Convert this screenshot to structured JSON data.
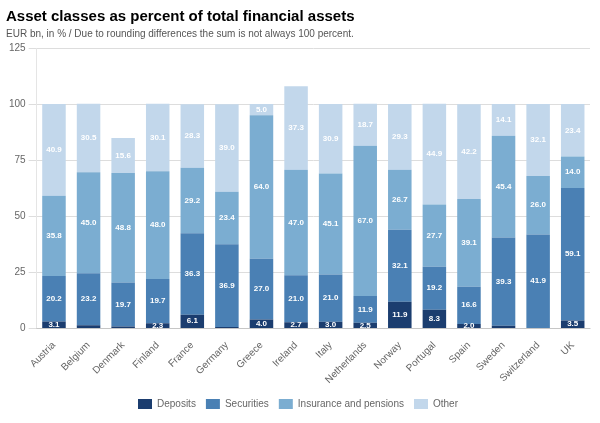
{
  "chart_data": {
    "type": "bar",
    "title": "Asset classes as percent of total financial assets",
    "subtitle": "EUR bn, in % / Due to rounding differences the sum is not always 100 percent.",
    "categories": [
      "Austria",
      "Belgium",
      "Denmark",
      "Finland",
      "France",
      "Germany",
      "Greece",
      "Ireland",
      "Italy",
      "Netherlands",
      "Norway",
      "Portugal",
      "Spain",
      "Sweden",
      "Switzerland",
      "UK"
    ],
    "stacked": true,
    "data_labels": true,
    "grid": true,
    "legend": "bottom",
    "ylim": [
      0,
      125
    ],
    "yticks": [
      0,
      25,
      50,
      75,
      100,
      125
    ],
    "series": [
      {
        "name": "Deposits",
        "color": "#1b3d6f",
        "values": [
          3.1,
          1.4,
          0.8,
          2.3,
          6.1,
          0.6,
          4.0,
          2.7,
          3.0,
          2.5,
          11.9,
          8.3,
          2.0,
          1.2,
          0.0,
          3.5
        ],
        "value_labels": [
          "3.1",
          null,
          null,
          "2.3",
          "6.1",
          null,
          "4.0",
          "2.7",
          "3.0",
          "2.5",
          "11.9",
          "8.3",
          "2.0",
          null,
          null,
          "3.5"
        ]
      },
      {
        "name": "Securities",
        "color": "#4a80b4",
        "values": [
          20.2,
          23.2,
          19.7,
          19.7,
          36.3,
          36.9,
          27.0,
          21.0,
          21.0,
          11.9,
          32.1,
          19.2,
          16.6,
          39.3,
          41.9,
          59.1
        ],
        "value_labels": [
          "20.2",
          "23.2",
          "19.7",
          "19.7",
          "36.3",
          "36.9",
          "27.0",
          "21.0",
          "21.0",
          "11.9",
          "32.1",
          "19.2",
          "16.6",
          "39.3",
          "41.9",
          "59.1"
        ]
      },
      {
        "name": "Insurance and pensions",
        "color": "#7badd1",
        "values": [
          35.8,
          45.0,
          48.8,
          48.0,
          29.2,
          23.4,
          64.0,
          47.0,
          45.1,
          67.0,
          26.7,
          27.7,
          39.1,
          45.4,
          26.0,
          14.0
        ],
        "value_labels": [
          "35.8",
          "45.0",
          "48.8",
          "48.0",
          "29.2",
          "23.4",
          "64.0",
          "47.0",
          "45.1",
          "67.0",
          "26.7",
          "27.7",
          "39.1",
          "45.4",
          "26.0",
          "14.0"
        ]
      },
      {
        "name": "Other",
        "color": "#c2d7eb",
        "values": [
          40.9,
          30.5,
          15.6,
          30.1,
          28.3,
          39.0,
          5.0,
          37.3,
          30.9,
          18.7,
          29.3,
          44.9,
          42.2,
          14.1,
          32.1,
          23.4
        ],
        "value_labels": [
          "40.9",
          "30.5",
          "15.6",
          "30.1",
          "28.3",
          "39.0",
          "5.0",
          "37.3",
          "30.9",
          "18.7",
          "29.3",
          "44.9",
          "42.2",
          "14.1",
          "32.1",
          "23.4"
        ]
      }
    ]
  }
}
